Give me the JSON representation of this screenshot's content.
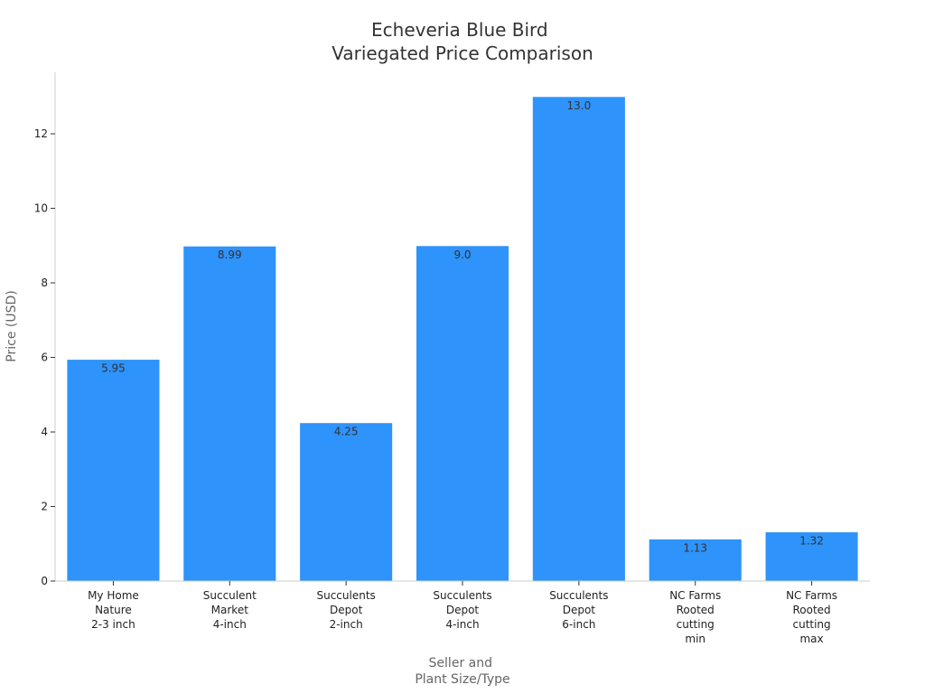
{
  "chart_data": {
    "type": "bar",
    "title": [
      "Echeveria Blue Bird",
      "Variegated Price Comparison"
    ],
    "xlabel": [
      "Seller and",
      "Plant Size/Type"
    ],
    "ylabel": "Price (USD)",
    "categories": [
      [
        "My Home",
        "Nature",
        "2-3 inch"
      ],
      [
        "Succulent",
        "Market",
        "4-inch"
      ],
      [
        "Succulents",
        "Depot",
        "2-inch"
      ],
      [
        "Succulents",
        "Depot",
        "4-inch"
      ],
      [
        "Succulents",
        "Depot",
        "6-inch"
      ],
      [
        "NC Farms",
        "Rooted",
        "cutting",
        "min"
      ],
      [
        "NC Farms",
        "Rooted",
        "cutting",
        "max"
      ]
    ],
    "values": [
      5.95,
      8.99,
      4.25,
      9.0,
      13.0,
      1.13,
      1.32
    ],
    "value_labels": [
      "5.95",
      "8.99",
      "4.25",
      "9.0",
      "13.0",
      "1.13",
      "1.32"
    ],
    "ylim": [
      0,
      13.65
    ],
    "yticks": [
      0,
      2,
      4,
      6,
      8,
      10,
      12
    ],
    "grid": false,
    "legend": "none",
    "colors": {
      "bar": "#2e93fa"
    }
  }
}
